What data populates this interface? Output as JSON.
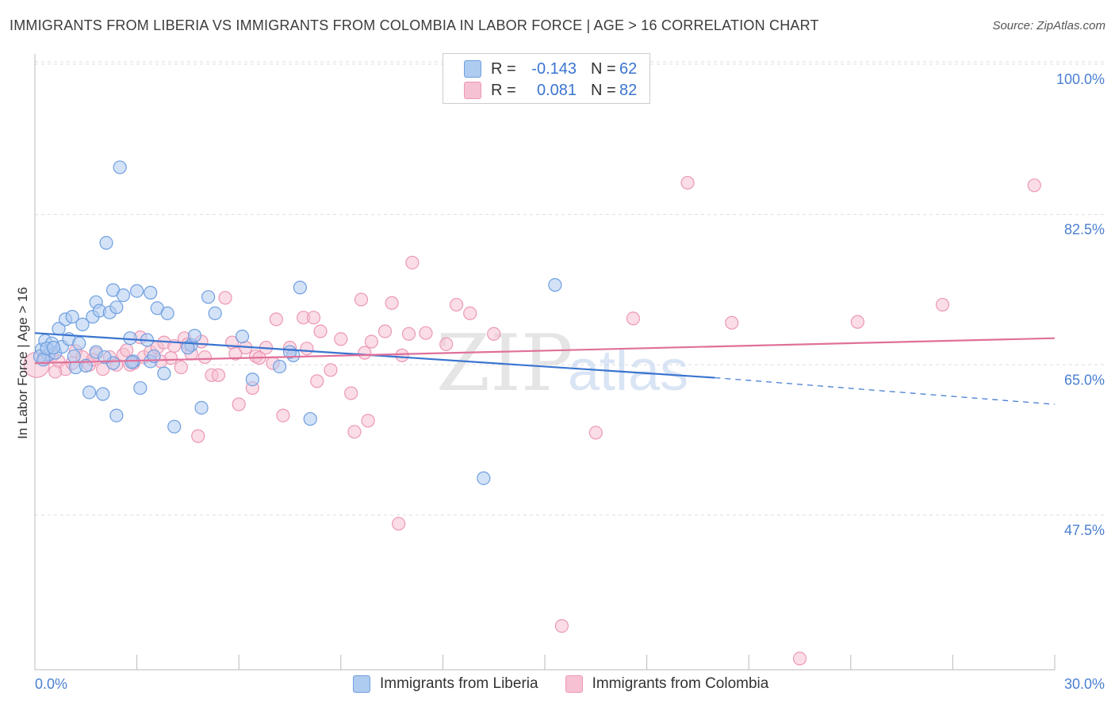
{
  "title": "IMMIGRANTS FROM LIBERIA VS IMMIGRANTS FROM COLOMBIA IN LABOR FORCE | AGE > 16 CORRELATION CHART",
  "source": "Source: ZipAtlas.com",
  "watermark": {
    "zip": "ZIP",
    "atlas": "atlas"
  },
  "colors": {
    "liberia_fill": "#aecbf0",
    "liberia_stroke": "#6f9fe0",
    "liberia_line": "#3a74d0",
    "colombia_fill": "#f6c1d2",
    "colombia_stroke": "#ec98b4",
    "colombia_line": "#e0709a",
    "tick_text": "#4a7fd0",
    "grid": "#dddddd"
  },
  "legend": {
    "rows": [
      {
        "r_label": "R =",
        "r_value": "-0.143",
        "n_label": "N =",
        "n_value": "62"
      },
      {
        "r_label": "R =",
        "r_value": "0.081",
        "n_label": "N =",
        "n_value": "82"
      }
    ]
  },
  "bottom_legend": [
    "Immigrants from Liberia",
    "Immigrants from Colombia"
  ],
  "chart_data": {
    "type": "scatter",
    "ylabel": "In Labor Force | Age > 16",
    "xlim": [
      0,
      30
    ],
    "ylim": [
      29.5,
      101.2
    ],
    "x_tick_labels": [
      "0.0%",
      "30.0%"
    ],
    "y_ticks": [
      100,
      82.5,
      65,
      47.5
    ],
    "y_tick_labels": [
      "100.0%",
      "82.5%",
      "65.0%",
      "47.5%"
    ],
    "grid": "horizontal dashed",
    "legend_placement": "top-center",
    "series": [
      {
        "name": "Immigrants from Liberia",
        "color": "#aecbf0",
        "trend": {
          "x": [
            0,
            20.0
          ],
          "y": [
            68.7,
            63.5
          ],
          "dashed_to": [
            30,
            60.4
          ]
        },
        "points": [
          [
            0.2,
            66.8
          ],
          [
            0.3,
            67.8
          ],
          [
            0.4,
            66.2
          ],
          [
            0.5,
            67.5
          ],
          [
            0.6,
            66.4
          ],
          [
            0.7,
            69.2
          ],
          [
            0.8,
            67.1
          ],
          [
            0.9,
            70.3
          ],
          [
            1.0,
            68.0
          ],
          [
            1.1,
            70.6
          ],
          [
            1.2,
            64.7
          ],
          [
            1.3,
            67.5
          ],
          [
            1.4,
            69.7
          ],
          [
            1.5,
            64.9
          ],
          [
            1.6,
            61.8
          ],
          [
            1.7,
            70.6
          ],
          [
            1.8,
            72.3
          ],
          [
            1.8,
            66.5
          ],
          [
            1.9,
            71.3
          ],
          [
            2.0,
            61.6
          ],
          [
            2.1,
            79.2
          ],
          [
            2.2,
            71.1
          ],
          [
            2.3,
            65.2
          ],
          [
            2.3,
            73.7
          ],
          [
            2.4,
            71.7
          ],
          [
            2.4,
            59.1
          ],
          [
            2.5,
            88.0
          ],
          [
            2.6,
            73.1
          ],
          [
            2.8,
            68.1
          ],
          [
            2.9,
            65.4
          ],
          [
            3.0,
            73.6
          ],
          [
            3.1,
            62.3
          ],
          [
            3.3,
            67.9
          ],
          [
            3.4,
            73.4
          ],
          [
            3.4,
            65.4
          ],
          [
            3.6,
            71.6
          ],
          [
            3.8,
            64.0
          ],
          [
            3.9,
            71.0
          ],
          [
            4.1,
            57.8
          ],
          [
            4.6,
            67.3
          ],
          [
            4.7,
            68.4
          ],
          [
            4.9,
            60.0
          ],
          [
            5.1,
            72.9
          ],
          [
            5.3,
            71.0
          ],
          [
            6.1,
            68.3
          ],
          [
            6.4,
            63.3
          ],
          [
            7.2,
            64.8
          ],
          [
            7.6,
            66.1
          ],
          [
            7.8,
            74.0
          ],
          [
            8.1,
            58.7
          ],
          [
            13.2,
            51.8
          ],
          [
            15.3,
            74.3
          ],
          [
            0.15,
            66.0
          ],
          [
            0.25,
            65.6
          ],
          [
            0.35,
            66.9
          ],
          [
            0.55,
            67.0
          ],
          [
            1.15,
            66.0
          ],
          [
            2.05,
            65.9
          ],
          [
            2.85,
            65.3
          ],
          [
            3.5,
            66.0
          ],
          [
            4.5,
            67.0
          ],
          [
            7.5,
            66.5
          ]
        ]
      },
      {
        "name": "Immigrants from Colombia",
        "color": "#f6c1d2",
        "trend": {
          "x": [
            0,
            30
          ],
          "y": [
            65.2,
            68.1
          ]
        },
        "points": [
          [
            0.05,
            65.0
          ],
          [
            0.3,
            65.8
          ],
          [
            0.5,
            66.0
          ],
          [
            0.7,
            65.4
          ],
          [
            0.9,
            64.5
          ],
          [
            1.1,
            65.2
          ],
          [
            1.2,
            66.6
          ],
          [
            1.4,
            65.9
          ],
          [
            1.6,
            65.0
          ],
          [
            1.8,
            66.3
          ],
          [
            2.0,
            64.5
          ],
          [
            2.2,
            65.9
          ],
          [
            2.4,
            65.0
          ],
          [
            2.6,
            66.2
          ],
          [
            2.7,
            66.7
          ],
          [
            2.9,
            65.2
          ],
          [
            3.1,
            68.2
          ],
          [
            3.2,
            65.9
          ],
          [
            3.4,
            66.5
          ],
          [
            3.6,
            67.0
          ],
          [
            3.8,
            67.6
          ],
          [
            4.0,
            65.8
          ],
          [
            4.1,
            67.2
          ],
          [
            4.3,
            64.7
          ],
          [
            4.4,
            68.1
          ],
          [
            4.6,
            66.3
          ],
          [
            4.8,
            56.7
          ],
          [
            4.9,
            67.7
          ],
          [
            5.0,
            65.9
          ],
          [
            5.2,
            63.8
          ],
          [
            5.4,
            63.8
          ],
          [
            5.6,
            72.8
          ],
          [
            5.8,
            67.6
          ],
          [
            5.9,
            66.3
          ],
          [
            6.0,
            60.4
          ],
          [
            6.2,
            67.0
          ],
          [
            6.4,
            62.3
          ],
          [
            6.5,
            66.0
          ],
          [
            6.8,
            67.0
          ],
          [
            7.1,
            70.3
          ],
          [
            7.3,
            59.1
          ],
          [
            7.5,
            67.0
          ],
          [
            7.9,
            70.5
          ],
          [
            8.0,
            66.9
          ],
          [
            8.2,
            70.5
          ],
          [
            8.3,
            63.1
          ],
          [
            8.4,
            68.9
          ],
          [
            8.7,
            64.4
          ],
          [
            9.0,
            68.0
          ],
          [
            9.3,
            61.7
          ],
          [
            9.4,
            57.2
          ],
          [
            9.6,
            72.6
          ],
          [
            9.8,
            58.5
          ],
          [
            9.9,
            67.7
          ],
          [
            10.3,
            68.9
          ],
          [
            10.5,
            72.2
          ],
          [
            10.7,
            46.5
          ],
          [
            10.8,
            66.1
          ],
          [
            11.0,
            68.6
          ],
          [
            11.1,
            76.9
          ],
          [
            11.5,
            68.7
          ],
          [
            12.1,
            67.4
          ],
          [
            12.4,
            72.0
          ],
          [
            12.8,
            71.0
          ],
          [
            13.5,
            68.6
          ],
          [
            15.5,
            34.6
          ],
          [
            16.5,
            57.1
          ],
          [
            17.6,
            70.4
          ],
          [
            19.2,
            86.2
          ],
          [
            20.5,
            69.9
          ],
          [
            22.5,
            30.8
          ],
          [
            24.2,
            70.0
          ],
          [
            26.7,
            72.0
          ],
          [
            29.4,
            85.9
          ],
          [
            0.6,
            64.2
          ],
          [
            1.7,
            65.6
          ],
          [
            3.7,
            65.4
          ],
          [
            4.5,
            67.4
          ],
          [
            7.0,
            65.2
          ],
          [
            9.7,
            66.4
          ],
          [
            2.8,
            65.0
          ],
          [
            6.6,
            65.8
          ]
        ]
      }
    ]
  }
}
